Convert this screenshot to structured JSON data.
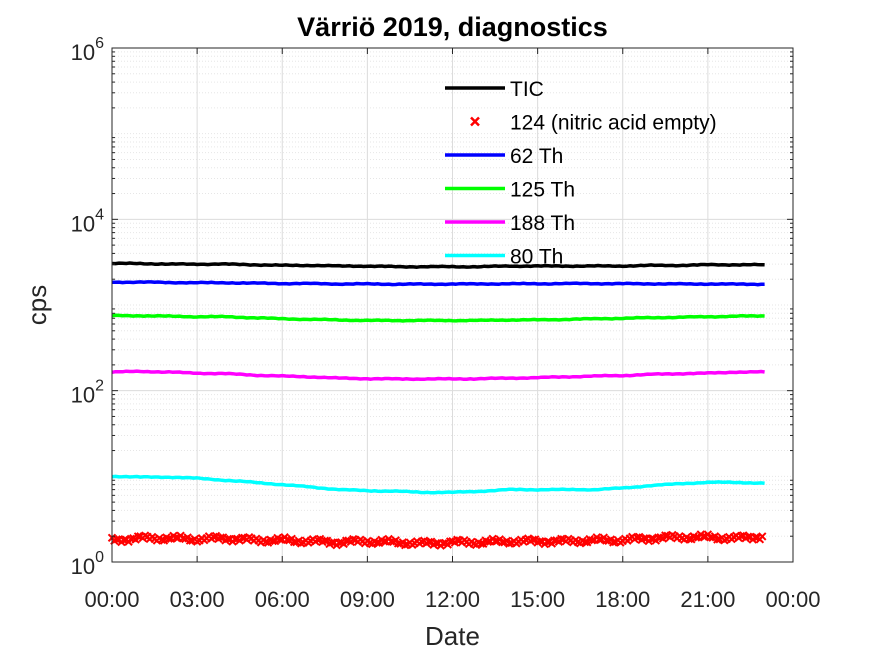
{
  "chart_data": {
    "type": "line",
    "title": "Värriö 2019, diagnostics",
    "xlabel": "Date",
    "ylabel": "cps",
    "xscale": "time",
    "yscale": "log",
    "xlim": [
      "00:00",
      "24:00"
    ],
    "ylim": [
      1,
      1000000
    ],
    "x_tick_labels": [
      "00:00",
      "03:00",
      "06:00",
      "09:00",
      "12:00",
      "15:00",
      "18:00",
      "21:00",
      "00:00"
    ],
    "y_tick_labels": [
      {
        "base": "10",
        "exp": "0"
      },
      {
        "base": "10",
        "exp": "2"
      },
      {
        "base": "10",
        "exp": "4"
      },
      {
        "base": "10",
        "exp": "6"
      }
    ],
    "grid": true,
    "legend_position": "top-right",
    "x": [
      "00:00",
      "01:00",
      "02:00",
      "03:00",
      "04:00",
      "05:00",
      "06:00",
      "07:00",
      "08:00",
      "09:00",
      "10:00",
      "11:00",
      "12:00",
      "13:00",
      "14:00",
      "15:00",
      "16:00",
      "17:00",
      "18:00",
      "19:00",
      "20:00",
      "21:00",
      "22:00",
      "23:00"
    ],
    "series": [
      {
        "name": "TIC",
        "color": "#000000",
        "style": "line",
        "values": [
          3050,
          3050,
          3000,
          3000,
          3000,
          2950,
          2900,
          2900,
          2850,
          2850,
          2800,
          2800,
          2800,
          2800,
          2850,
          2850,
          2850,
          2850,
          2850,
          2900,
          2900,
          2950,
          2950,
          2950
        ]
      },
      {
        "name": "124 (nitric acid empty)",
        "color": "#ff0000",
        "style": "marker-x",
        "values": [
          1.8,
          1.9,
          1.9,
          1.85,
          1.9,
          1.8,
          1.8,
          1.75,
          1.7,
          1.75,
          1.7,
          1.65,
          1.7,
          1.7,
          1.75,
          1.75,
          1.75,
          1.8,
          1.8,
          1.9,
          1.95,
          1.95,
          1.9,
          2.0
        ]
      },
      {
        "name": "62 Th",
        "color": "#0000ff",
        "style": "line",
        "values": [
          1850,
          1850,
          1830,
          1820,
          1820,
          1800,
          1780,
          1780,
          1760,
          1760,
          1750,
          1750,
          1760,
          1760,
          1770,
          1770,
          1780,
          1780,
          1770,
          1770,
          1760,
          1760,
          1750,
          1750
        ]
      },
      {
        "name": "125 Th",
        "color": "#00ff00",
        "style": "line",
        "values": [
          750,
          750,
          740,
          730,
          730,
          710,
          690,
          680,
          670,
          660,
          660,
          660,
          660,
          660,
          670,
          670,
          680,
          690,
          700,
          710,
          720,
          730,
          740,
          745
        ]
      },
      {
        "name": "188 Th",
        "color": "#ff00ff",
        "style": "line",
        "values": [
          165,
          168,
          165,
          160,
          158,
          152,
          148,
          145,
          140,
          138,
          137,
          137,
          137,
          138,
          140,
          142,
          145,
          148,
          150,
          155,
          158,
          160,
          165,
          165
        ]
      },
      {
        "name": "80 Th",
        "color": "#00ffff",
        "style": "line",
        "values": [
          10,
          9.8,
          9.8,
          9.5,
          9,
          8.5,
          8,
          7.5,
          7,
          6.8,
          6.7,
          6.5,
          6.5,
          6.7,
          7,
          7,
          7,
          7,
          7.3,
          7.8,
          8.2,
          8.5,
          8.5,
          8.3
        ]
      }
    ]
  }
}
